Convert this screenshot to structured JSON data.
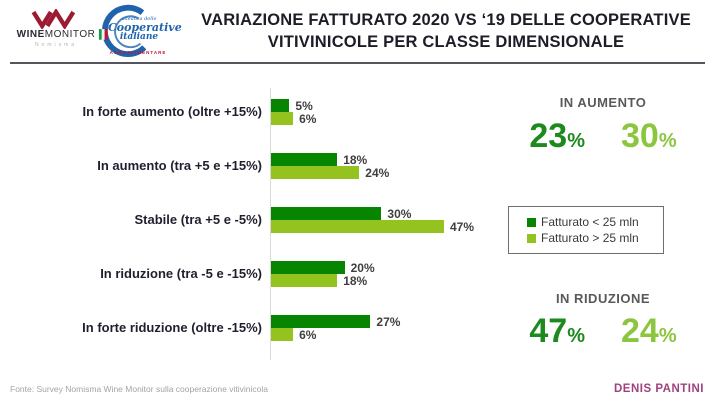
{
  "header": {
    "title": "VARIAZIONE FATTURATO 2020 VS ‘19 DELLE COOPERATIVE VITIVINICOLE PER CLASSE DIMENSIONALE",
    "logos": {
      "wine_monitor": {
        "name_bold": "WINE",
        "name_regular": "MONITOR",
        "subtitle": "Nomisma"
      },
      "cooperative": {
        "top": "alleanza delle",
        "main": "Cooperative",
        "secondary": "italiane",
        "bottom": "AGROALIMENTARE"
      }
    }
  },
  "chart_data": {
    "type": "bar",
    "orientation": "horizontal",
    "categories": [
      "In forte aumento (oltre +15%)",
      "In aumento (tra +5 e +15%)",
      "Stabile (tra +5 e -5%)",
      "In riduzione (tra -5 e -15%)",
      "In forte riduzione (oltre -15%)"
    ],
    "series": [
      {
        "name": "Fatturato < 25 mln",
        "color": "#088500",
        "values": [
          5,
          18,
          30,
          20,
          27
        ]
      },
      {
        "name": "Fatturato > 25 mln",
        "color": "#94C21E",
        "values": [
          6,
          24,
          47,
          18,
          6
        ]
      }
    ],
    "value_suffix": "%",
    "xlim": [
      0,
      50
    ],
    "grid": false,
    "legend_position": "right-middle"
  },
  "summary": {
    "increase": {
      "heading": "IN AUMENTO",
      "small_coop_value": "23",
      "large_coop_value": "30",
      "suffix": "%"
    },
    "decrease": {
      "heading": "IN RIDUZIONE",
      "small_coop_value": "47",
      "large_coop_value": "24",
      "suffix": "%"
    }
  },
  "colors": {
    "bar_dark_green": "#088500",
    "bar_light_green": "#94C21E",
    "number_dark_green": "#1E8A1E",
    "number_light_green": "#8CC63E",
    "heading_grey": "#595959",
    "title_dark": "#1D1D27",
    "author_magenta": "#A0417F"
  },
  "footer": {
    "source": "Fonte: Survey Nomisma Wine Monitor sulla cooperazione vitivinicola",
    "author": "DENIS PANTINI"
  }
}
